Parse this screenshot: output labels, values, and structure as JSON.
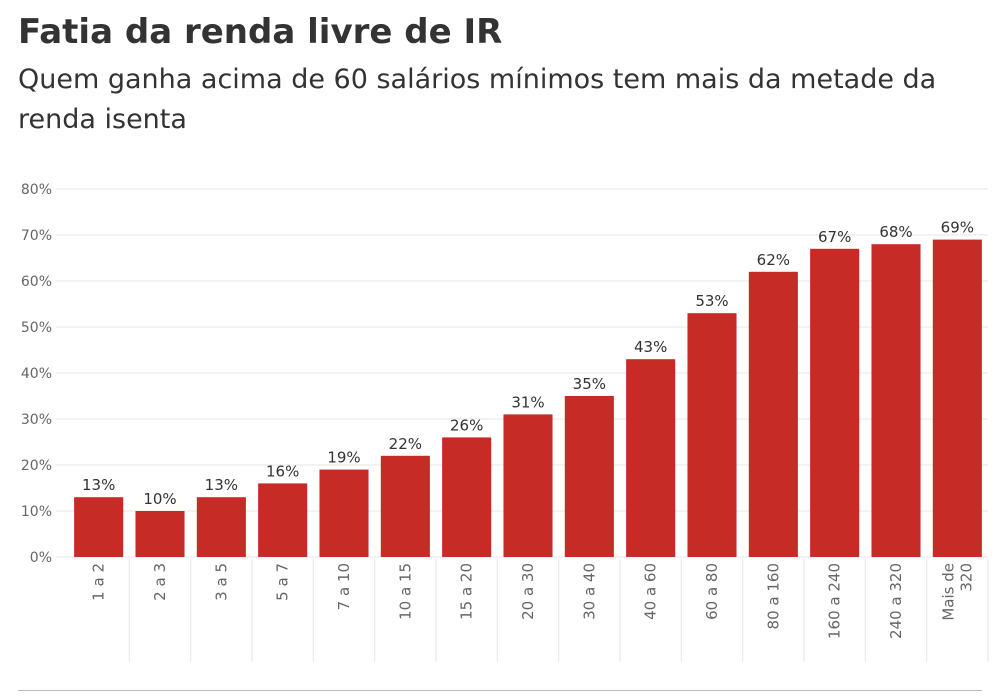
{
  "title": "Fatia da renda livre de IR",
  "subtitle": "Quem ganha acima de 60 salários mínimos tem mais da metade da renda isenta",
  "chart_data": {
    "type": "bar",
    "categories": [
      "1 a 2",
      "2 a 3",
      "3 a 5",
      "5 a 7",
      "7 a 10",
      "10 a 15",
      "15 a 20",
      "20 a 30",
      "30 a 40",
      "40 a 60",
      "60 a 80",
      "80 a 160",
      "160 a 240",
      "240 a 320",
      "Mais de 320"
    ],
    "category_lines": [
      [
        "1 a 2"
      ],
      [
        "2 a 3"
      ],
      [
        "3 a 5"
      ],
      [
        "5 a 7"
      ],
      [
        "7 a 10"
      ],
      [
        "10 a 15"
      ],
      [
        "15 a 20"
      ],
      [
        "20 a 30"
      ],
      [
        "30 a 40"
      ],
      [
        "40 a 60"
      ],
      [
        "60 a 80"
      ],
      [
        "80 a 160"
      ],
      [
        "160 a 240"
      ],
      [
        "240 a 320"
      ],
      [
        "Mais de",
        "320"
      ]
    ],
    "values": [
      13,
      10,
      13,
      16,
      19,
      22,
      26,
      31,
      35,
      43,
      53,
      62,
      67,
      68,
      69
    ],
    "data_labels": [
      "13%",
      "10%",
      "13%",
      "16%",
      "19%",
      "22%",
      "26%",
      "31%",
      "35%",
      "43%",
      "53%",
      "62%",
      "67%",
      "68%",
      "69%"
    ],
    "y_ticks": [
      0,
      10,
      20,
      30,
      40,
      50,
      60,
      70,
      80
    ],
    "y_tick_labels": [
      "0%",
      "10%",
      "20%",
      "30%",
      "40%",
      "50%",
      "60%",
      "70%",
      "80%"
    ],
    "ylim": [
      0,
      80
    ],
    "xlabel": "",
    "ylabel": "",
    "grid": true,
    "legend": "none",
    "bar_color": "#c62b26",
    "grid_color": "#e6e6e6"
  }
}
